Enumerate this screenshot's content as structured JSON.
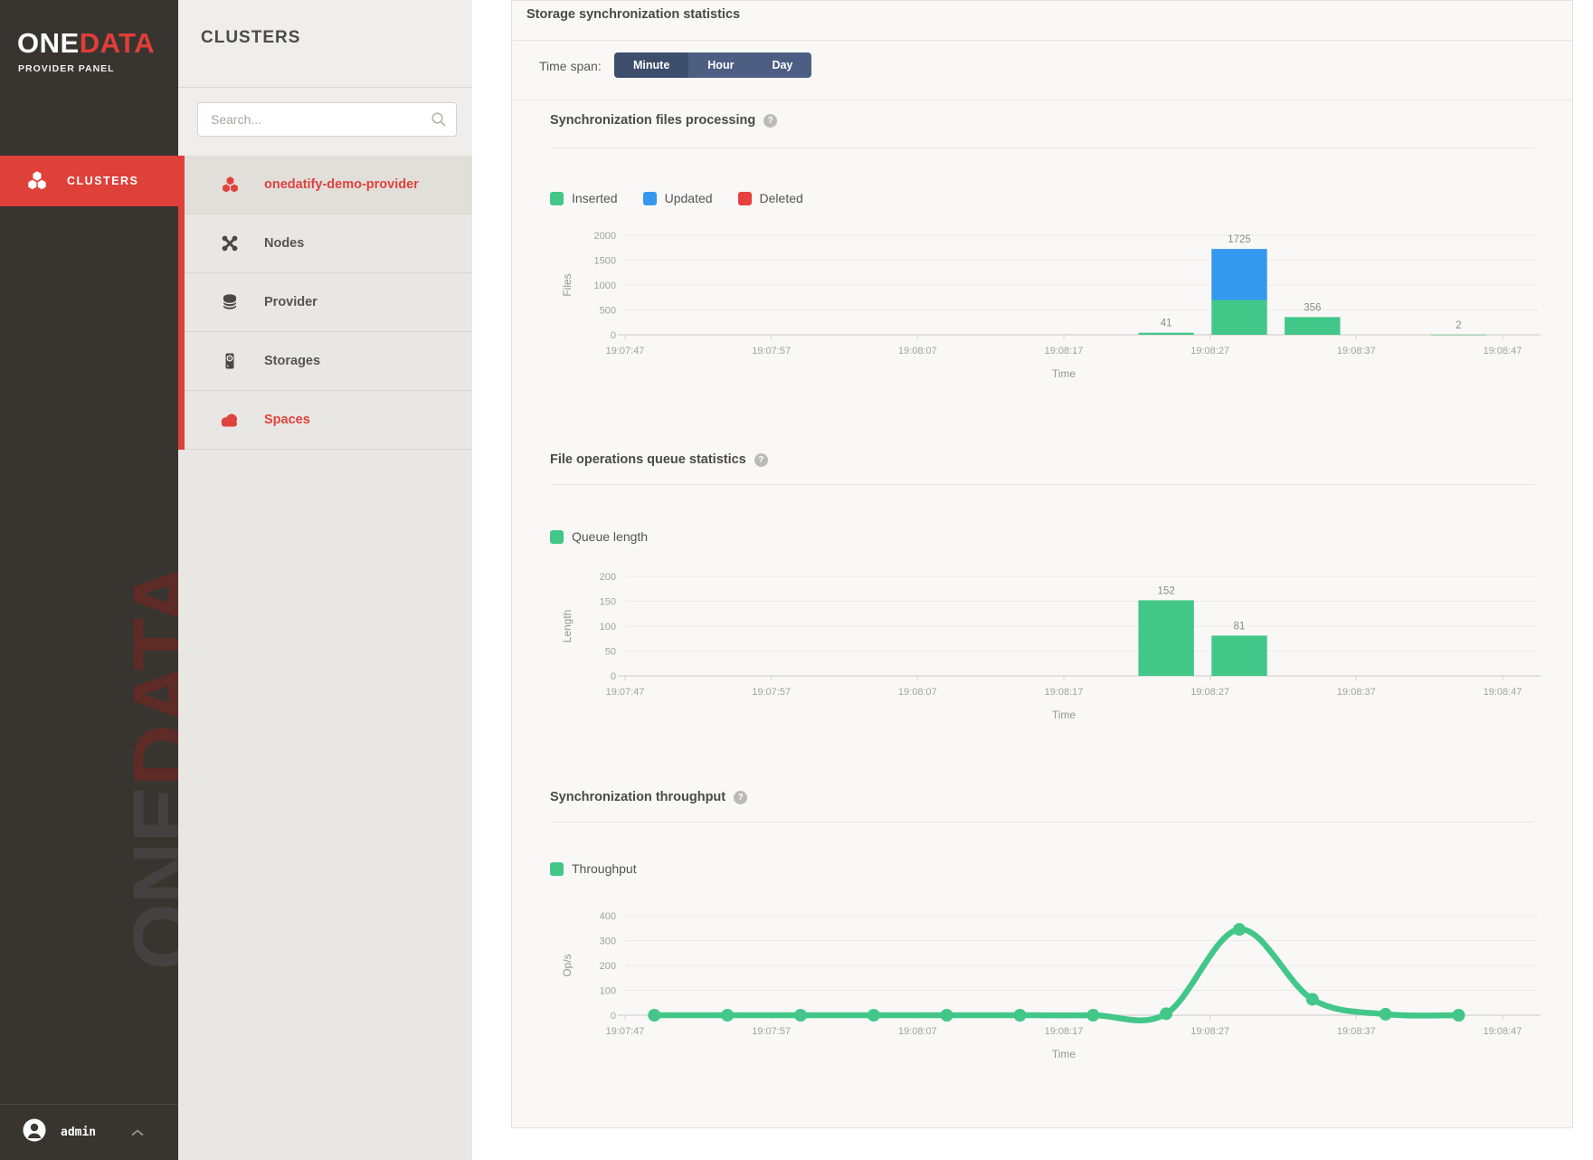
{
  "brand": {
    "logo_one": "ONE",
    "logo_data": "DATA",
    "subtitle": "PROVIDER PANEL",
    "watermark_one": "ONE",
    "watermark_data": "DATA"
  },
  "nav": {
    "clusters_label": "CLUSTERS"
  },
  "user": {
    "name": "admin"
  },
  "sidebar2": {
    "title": "CLUSTERS",
    "search_placeholder": "Search...",
    "cluster_name": "onedatify-demo-provider",
    "items": [
      {
        "label": "Nodes"
      },
      {
        "label": "Provider"
      },
      {
        "label": "Storages"
      },
      {
        "label": "Spaces"
      }
    ]
  },
  "panel": {
    "title": "Storage synchronization statistics",
    "time_span_label": "Time span:",
    "time_span_options": [
      "Minute",
      "Hour",
      "Day"
    ],
    "time_span_active": "Minute",
    "help_glyph": "?"
  },
  "colors": {
    "green": "#42c788",
    "blue": "#3598ef",
    "red": "#e8403c",
    "brand_red": "#e23d38"
  },
  "chart_data": [
    {
      "type": "bar",
      "stacked": true,
      "title": "Synchronization files processing",
      "xlabel": "Time",
      "ylabel": "Files",
      "ylim": [
        0,
        2000
      ],
      "yticks": [
        0,
        500,
        1000,
        1500,
        2000
      ],
      "grid": true,
      "legend_position": "top-left",
      "x_seconds_range": [
        0,
        60
      ],
      "xtick_seconds": [
        0,
        10,
        20,
        30,
        40,
        50,
        60
      ],
      "xtick_labels": [
        "19:07:47",
        "19:07:57",
        "19:08:07",
        "19:08:17",
        "19:08:27",
        "19:08:37",
        "19:08:47"
      ],
      "legend": [
        {
          "label": "Inserted",
          "color": "#42c788"
        },
        {
          "label": "Updated",
          "color": "#3598ef"
        },
        {
          "label": "Deleted",
          "color": "#e8403c"
        }
      ],
      "bar_width_seconds": 3.8,
      "bars": [
        {
          "t_seconds": 37,
          "label": "41",
          "total": 41,
          "segments": [
            {
              "series": "Inserted",
              "value": 41
            }
          ]
        },
        {
          "t_seconds": 42,
          "label": "1725",
          "total": 1725,
          "segments": [
            {
              "series": "Inserted",
              "value": 700
            },
            {
              "series": "Updated",
              "value": 1025
            }
          ]
        },
        {
          "t_seconds": 47,
          "label": "356",
          "total": 356,
          "segments": [
            {
              "series": "Inserted",
              "value": 356
            }
          ]
        },
        {
          "t_seconds": 57,
          "label": "2",
          "total": 2,
          "segments": [
            {
              "series": "Inserted",
              "value": 2
            }
          ]
        }
      ]
    },
    {
      "type": "bar",
      "stacked": false,
      "title": "File operations queue statistics",
      "xlabel": "Time",
      "ylabel": "Length",
      "ylim": [
        0,
        200
      ],
      "yticks": [
        0,
        50,
        100,
        150,
        200
      ],
      "grid": true,
      "legend_position": "top-left",
      "x_seconds_range": [
        0,
        60
      ],
      "xtick_seconds": [
        0,
        10,
        20,
        30,
        40,
        50,
        60
      ],
      "xtick_labels": [
        "19:07:47",
        "19:07:57",
        "19:08:07",
        "19:08:17",
        "19:08:27",
        "19:08:37",
        "19:08:47"
      ],
      "legend": [
        {
          "label": "Queue length",
          "color": "#42c788"
        }
      ],
      "bar_width_seconds": 3.8,
      "bars": [
        {
          "t_seconds": 37,
          "label": "152",
          "total": 152,
          "segments": [
            {
              "series": "Queue length",
              "value": 152
            }
          ]
        },
        {
          "t_seconds": 42,
          "label": "81",
          "total": 81,
          "segments": [
            {
              "series": "Queue length",
              "value": 81
            }
          ]
        }
      ]
    },
    {
      "type": "line",
      "title": "Synchronization throughput",
      "xlabel": "Time",
      "ylabel": "Op/s",
      "ylim": [
        0,
        400
      ],
      "yticks": [
        0,
        100,
        200,
        300,
        400
      ],
      "grid": true,
      "legend_position": "top-left",
      "x_seconds_range": [
        0,
        60
      ],
      "xtick_seconds": [
        0,
        10,
        20,
        30,
        40,
        50,
        60
      ],
      "xtick_labels": [
        "19:07:47",
        "19:07:57",
        "19:08:07",
        "19:08:17",
        "19:08:27",
        "19:08:37",
        "19:08:47"
      ],
      "legend": [
        {
          "label": "Throughput",
          "color": "#42c788"
        }
      ],
      "series": [
        {
          "name": "Throughput",
          "color": "#42c788",
          "points": [
            {
              "t": 2,
              "v": 0
            },
            {
              "t": 7,
              "v": 0
            },
            {
              "t": 12,
              "v": 0
            },
            {
              "t": 17,
              "v": 0
            },
            {
              "t": 22,
              "v": 0
            },
            {
              "t": 27,
              "v": 0
            },
            {
              "t": 32,
              "v": 0
            },
            {
              "t": 37,
              "v": 6
            },
            {
              "t": 42,
              "v": 345
            },
            {
              "t": 47,
              "v": 64
            },
            {
              "t": 52,
              "v": 4
            },
            {
              "t": 57,
              "v": 0
            }
          ]
        }
      ]
    }
  ]
}
